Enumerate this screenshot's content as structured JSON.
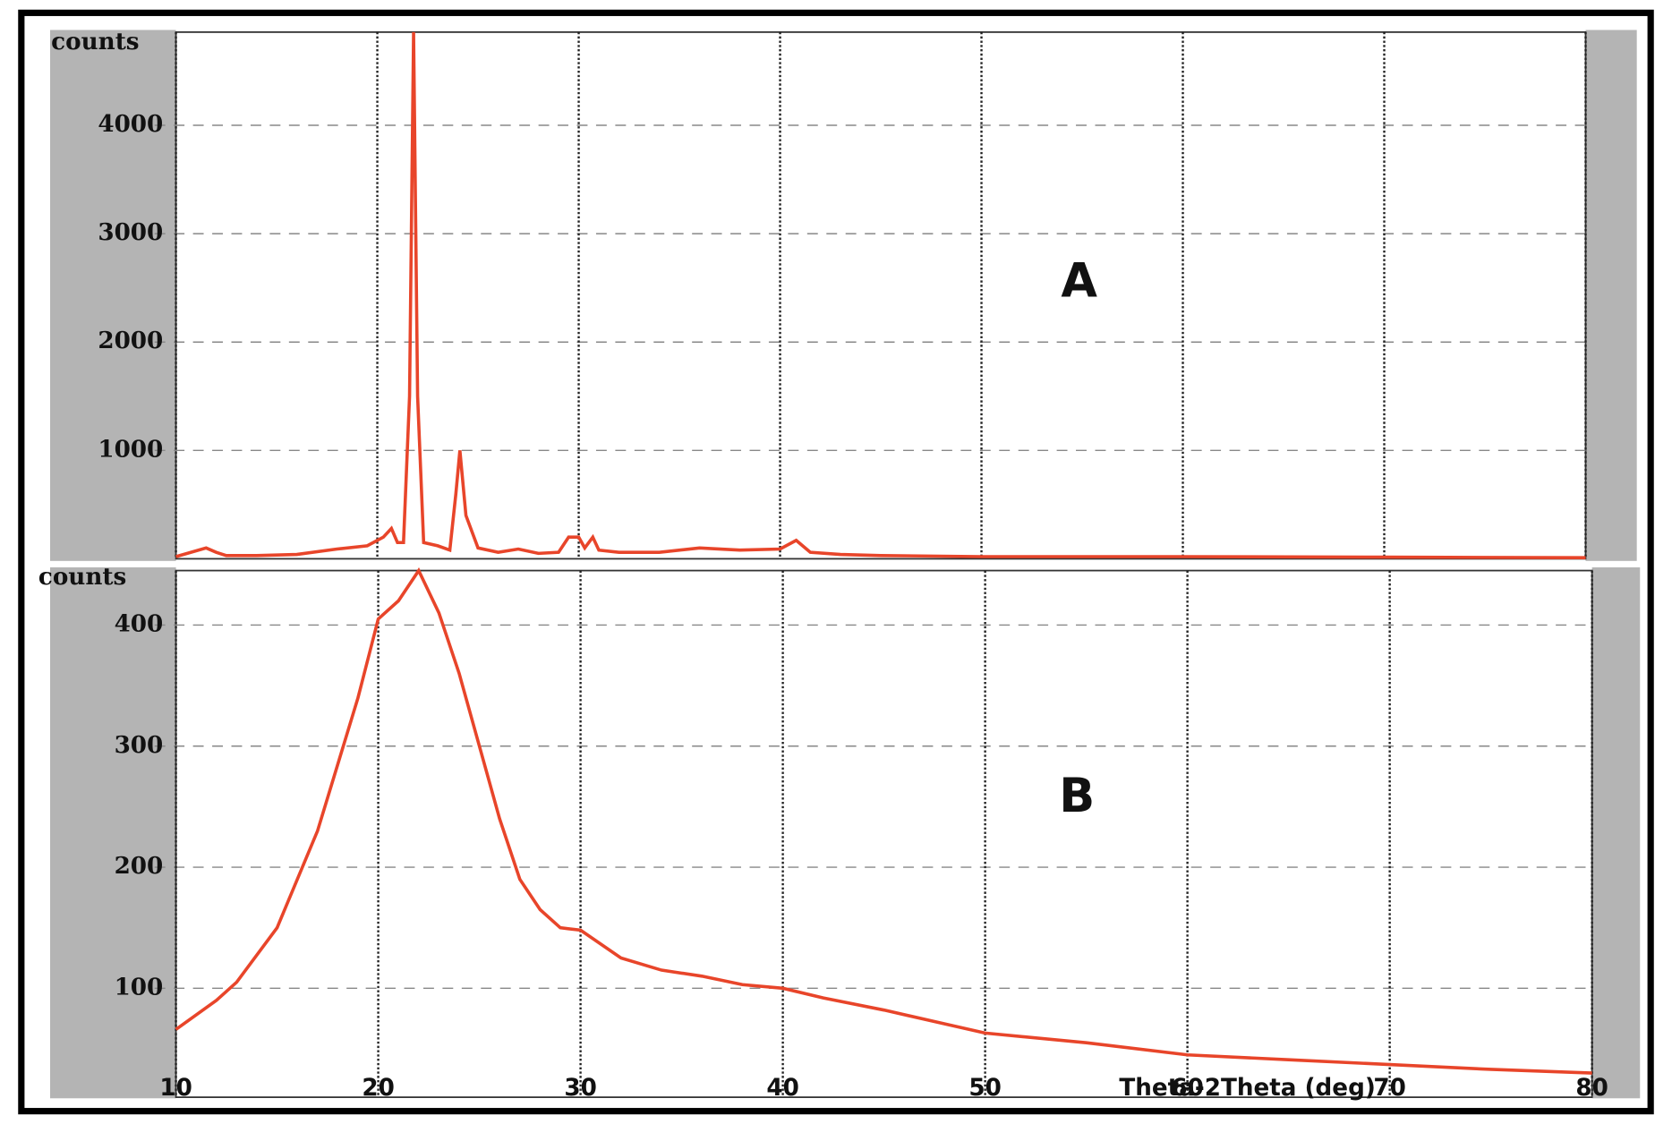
{
  "chart_data": [
    {
      "type": "line",
      "annotation": "A",
      "y_label": "counts",
      "x": [
        10,
        11.5,
        12,
        12.5,
        14,
        16,
        18,
        19.5,
        20.3,
        20.7,
        21,
        21.3,
        21.6,
        21.8,
        22,
        22.3,
        23,
        23.6,
        23.9,
        24.1,
        24.4,
        25,
        26,
        27,
        28,
        29,
        29.5,
        30,
        30.3,
        30.7,
        31,
        32,
        34,
        36,
        38,
        40,
        40.8,
        41.5,
        43,
        45,
        50,
        60,
        70,
        80
      ],
      "series": [
        {
          "color": "#e8452a",
          "values": [
            20,
            100,
            60,
            30,
            30,
            40,
            90,
            120,
            200,
            280,
            150,
            150,
            1500,
            4860,
            1500,
            150,
            120,
            80,
            600,
            1000,
            400,
            100,
            60,
            90,
            50,
            60,
            200,
            200,
            100,
            200,
            80,
            60,
            60,
            100,
            80,
            90,
            170,
            60,
            40,
            30,
            20,
            20,
            15,
            10
          ]
        }
      ],
      "xlim": [
        10,
        80
      ],
      "xticks": [
        10,
        20,
        30,
        40,
        50,
        60,
        70,
        80
      ],
      "show_xtick_labels": false,
      "ylim": [
        0,
        4860
      ],
      "yticks": [
        1000,
        2000,
        3000,
        4000
      ],
      "grid": true
    },
    {
      "type": "line",
      "annotation": "B",
      "y_label": "counts",
      "x_label": "Theta-2Theta (deg)",
      "x": [
        10,
        12,
        13,
        15,
        17,
        19,
        20,
        21,
        22,
        23,
        24,
        25,
        26,
        27,
        28,
        29,
        30,
        32,
        34,
        36,
        38,
        40,
        42,
        45,
        50,
        55,
        60,
        65,
        70,
        75,
        80
      ],
      "series": [
        {
          "color": "#e8452a",
          "values": [
            66,
            90,
            105,
            150,
            230,
            340,
            405,
            420,
            445,
            410,
            360,
            300,
            240,
            190,
            165,
            150,
            148,
            125,
            115,
            110,
            103,
            100,
            92,
            82,
            63,
            55,
            45,
            41,
            37,
            33,
            30
          ]
        }
      ],
      "xlim": [
        10,
        80
      ],
      "xticks": [
        10,
        20,
        30,
        40,
        50,
        60,
        70,
        80
      ],
      "show_xtick_labels": true,
      "ylim": [
        10,
        445
      ],
      "yticks": [
        100,
        200,
        300,
        400
      ],
      "grid": true
    }
  ]
}
